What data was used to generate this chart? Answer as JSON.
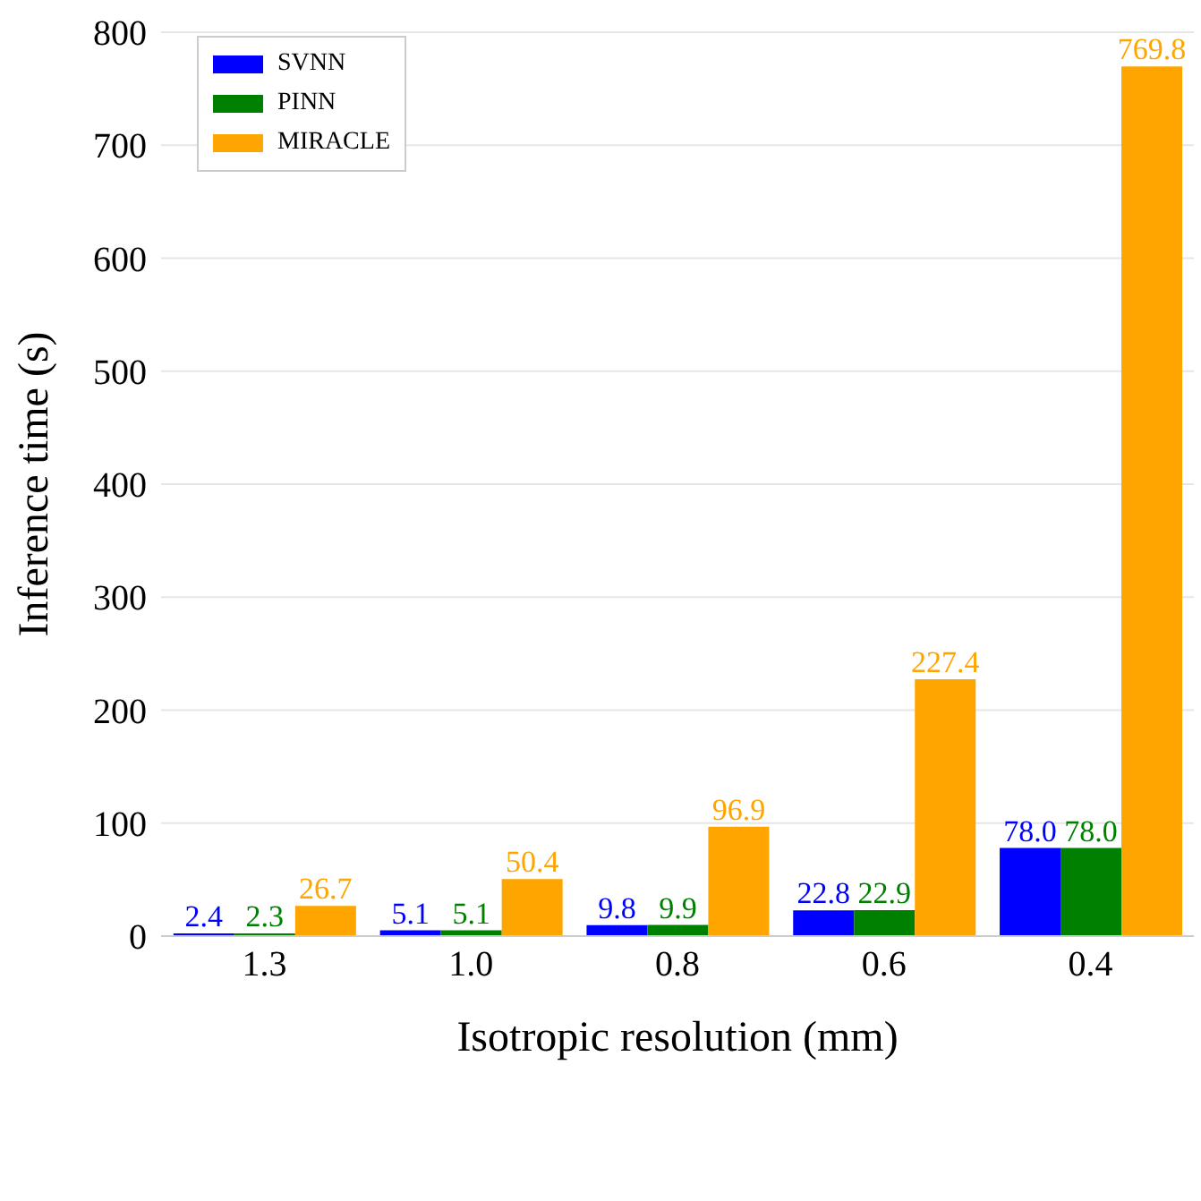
{
  "chart_data": {
    "type": "bar",
    "xlabel": "Isotropic resolution (mm)",
    "ylabel": "Inference time (s)",
    "categories": [
      "1.3",
      "1.0",
      "0.8",
      "0.6",
      "0.4"
    ],
    "series": [
      {
        "name": "SVNN",
        "color": "#0000ff",
        "values": [
          2.4,
          5.1,
          9.8,
          22.8,
          78.0
        ],
        "value_labels": [
          "2.4",
          "5.1",
          "9.8",
          "22.8",
          "78.0"
        ]
      },
      {
        "name": "PINN",
        "color": "#008000",
        "values": [
          2.3,
          5.1,
          9.9,
          22.9,
          78.0
        ],
        "value_labels": [
          "2.3",
          "5.1",
          "9.9",
          "22.9",
          "78.0"
        ]
      },
      {
        "name": "MIRACLE",
        "color": "#ffa500",
        "values": [
          26.7,
          50.4,
          96.9,
          227.4,
          769.8
        ],
        "value_labels": [
          "26.7",
          "50.4",
          "96.9",
          "227.4",
          "769.8"
        ]
      }
    ],
    "ylim": [
      0,
      800
    ],
    "yticks": [
      0,
      100,
      200,
      300,
      400,
      500,
      600,
      700,
      800
    ],
    "grid": "y",
    "legend": "top left"
  }
}
